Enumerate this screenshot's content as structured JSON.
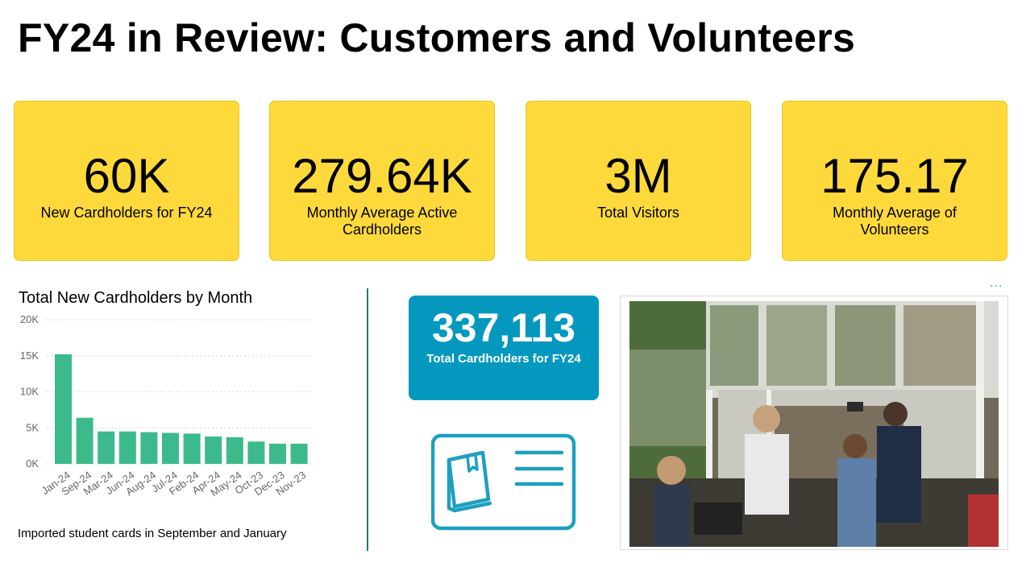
{
  "page": {
    "title": "FY24 in Review: Customers and Volunteers"
  },
  "kpis": [
    {
      "value": "60K",
      "label": "New Cardholders for FY24"
    },
    {
      "value": "279.64K",
      "label": "Monthly Average Active Cardholders"
    },
    {
      "value": "3M",
      "label": "Total Visitors"
    },
    {
      "value": "175.17",
      "label": "Monthly Average of Volunteers"
    }
  ],
  "total_card": {
    "value": "337,113",
    "label": "Total Cardholders for FY24"
  },
  "chart_note": "Imported student cards in September and January",
  "more_menu": "...",
  "colors": {
    "kpi_bg": "#fdd93b",
    "bar": "#3cba8c",
    "total_card_bg": "#0598bf",
    "divider": "#1b7a87",
    "icon": "#1e9fc0"
  },
  "icons": {
    "card_icon": "library-card-icon",
    "photo": "library-entrance-photo"
  },
  "chart_data": {
    "type": "bar",
    "title": "Total New Cardholders by Month",
    "xlabel": "",
    "ylabel": "",
    "categories": [
      "Jan-24",
      "Sep-24",
      "Mar-24",
      "Jun-24",
      "Aug-24",
      "Jul-24",
      "Feb-24",
      "Apr-24",
      "May-24",
      "Oct-23",
      "Dec-23",
      "Nov-23"
    ],
    "values": [
      15200,
      6400,
      4500,
      4500,
      4400,
      4300,
      4200,
      3800,
      3700,
      3100,
      2800,
      2800
    ],
    "ylim": [
      0,
      20000
    ],
    "yticks": [
      0,
      5000,
      10000,
      15000,
      20000
    ],
    "ytick_labels": [
      "0K",
      "5K",
      "10K",
      "15K",
      "20K"
    ],
    "grid": true,
    "color": "#3cba8c"
  }
}
